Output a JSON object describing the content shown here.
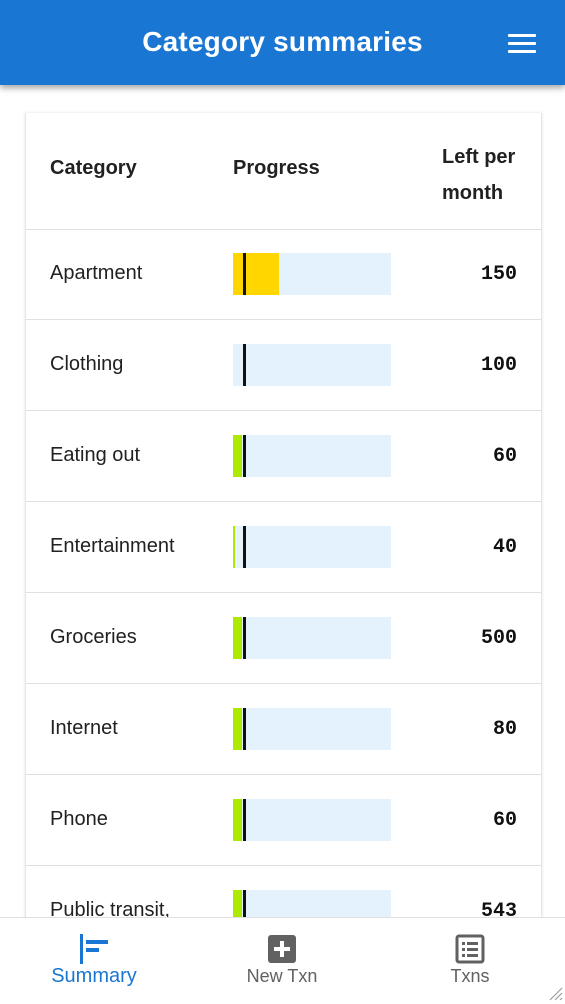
{
  "appbar": {
    "title": "Category summaries",
    "menu_icon": "menu-icon"
  },
  "table": {
    "headers": {
      "category": "Category",
      "progress": "Progress",
      "left": "Left per month"
    },
    "rows": [
      {
        "category": "Apartment",
        "left": "150",
        "progress": 0.29,
        "color": "#ffd600"
      },
      {
        "category": "Clothing",
        "left": "100",
        "progress": 0.0,
        "color": "#aeea00"
      },
      {
        "category": "Eating out",
        "left": "60",
        "progress": 0.06,
        "color": "#aeea00"
      },
      {
        "category": "Entertainment",
        "left": "40",
        "progress": 0.015,
        "color": "#aeea00"
      },
      {
        "category": "Groceries",
        "left": "500",
        "progress": 0.06,
        "color": "#aeea00"
      },
      {
        "category": "Internet",
        "left": "80",
        "progress": 0.06,
        "color": "#aeea00"
      },
      {
        "category": "Phone",
        "left": "60",
        "progress": 0.06,
        "color": "#aeea00"
      },
      {
        "category": "Public transit,",
        "left": "543",
        "progress": 0.06,
        "color": "#aeea00"
      }
    ]
  },
  "nav": {
    "summary": {
      "label": "Summary",
      "icon": "summary-icon"
    },
    "new_txn": {
      "label": "New Txn",
      "icon": "add-box-icon"
    },
    "txns": {
      "label": "Txns",
      "icon": "list-icon"
    }
  },
  "colors": {
    "primary": "#1976d2",
    "bar_bg": "#e3f2fd",
    "over": "#ffd600",
    "ok": "#aeea00"
  }
}
